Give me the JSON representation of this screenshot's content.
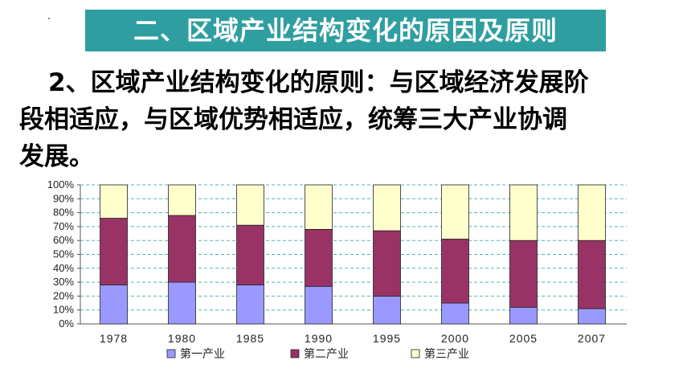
{
  "title": "二、区域产业结构变化的原因及原则",
  "paragraph": {
    "line1": "2、区域产业结构变化的原则：与区域经济发展阶",
    "line2": "段相适应，与区域优势相适应，统筹三大产业协调",
    "line3": "发展。"
  },
  "colors": {
    "title_bg": "#2f9ea0",
    "primary": "#9999ff",
    "secondary": "#993366",
    "tertiary": "#ffffcc",
    "grid": "#4fb5b5"
  },
  "chart_data": {
    "type": "bar",
    "stacked": true,
    "percent": true,
    "categories": [
      "1978",
      "1980",
      "1985",
      "1990",
      "1995",
      "2000",
      "2005",
      "2007"
    ],
    "series": [
      {
        "name": "第一产业",
        "color": "#9999ff",
        "values": [
          28,
          30,
          28,
          27,
          20,
          15,
          12,
          11
        ]
      },
      {
        "name": "第二产业",
        "color": "#993366",
        "values": [
          48,
          48,
          43,
          41,
          47,
          46,
          48,
          49
        ]
      },
      {
        "name": "第三产业",
        "color": "#ffffcc",
        "values": [
          24,
          22,
          29,
          32,
          33,
          39,
          40,
          40
        ]
      }
    ],
    "yticks": [
      "0%",
      "10%",
      "20%",
      "30%",
      "40%",
      "50%",
      "60%",
      "70%",
      "80%",
      "90%",
      "100%"
    ],
    "ylim": [
      0,
      100
    ],
    "grid": true,
    "legend": "bottom"
  }
}
